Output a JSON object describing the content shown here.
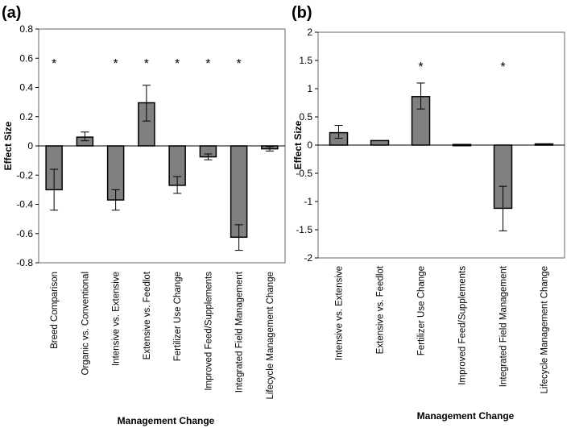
{
  "chart_data": [
    {
      "panel_label": "(a)",
      "type": "bar",
      "ylabel": "Effect Size",
      "xlabel": "Management Change",
      "ylim": [
        -0.8,
        0.8
      ],
      "yticks": [
        "-0.8",
        "-0.6",
        "-0.4",
        "-0.2",
        "0",
        "0.2",
        "0.4",
        "0.6",
        "0.8"
      ],
      "categories": [
        "Breed Comparison",
        "Organic vs. Conventional",
        "Intensive vs. Extensive",
        "Extensive vs. Feedlot",
        "Fertilizer Use Change",
        "Improved Feed/Supplements",
        "Integrated Field Management",
        "Lifecycle Management Change"
      ],
      "values": [
        -0.3,
        0.06,
        -0.37,
        0.295,
        -0.27,
        -0.075,
        -0.625,
        -0.02
      ],
      "error_low": [
        -0.44,
        0.035,
        -0.44,
        0.17,
        -0.325,
        -0.095,
        -0.715,
        -0.035
      ],
      "error_high": [
        -0.16,
        0.095,
        -0.3,
        0.415,
        -0.21,
        -0.055,
        -0.54,
        -0.005
      ],
      "significant": [
        true,
        false,
        true,
        true,
        true,
        true,
        true,
        false
      ],
      "significance_marker": "*"
    },
    {
      "panel_label": "(b)",
      "type": "bar",
      "ylabel": "Effect Size",
      "xlabel": "Management Change",
      "ylim": [
        -2,
        2
      ],
      "yticks": [
        "-2",
        "-1.5",
        "-1",
        "-0.5",
        "0",
        "0.5",
        "1",
        "1.5",
        "2"
      ],
      "categories": [
        "Intensive vs. Extensive",
        "Extensive vs. Feedlot",
        "Fertilizer Use Change",
        "Improved Feed/Supplements",
        "Integrated Field Management",
        "Lifecycle Management Change"
      ],
      "values": [
        0.22,
        0.08,
        0.86,
        0.0,
        -1.12,
        0.01
      ],
      "error_low": [
        0.12,
        0.08,
        0.64,
        0.0,
        -1.52,
        0.01
      ],
      "error_high": [
        0.35,
        0.08,
        1.1,
        0.0,
        -0.73,
        0.01
      ],
      "significant": [
        false,
        false,
        true,
        false,
        true,
        false
      ],
      "significance_marker": "*"
    }
  ]
}
